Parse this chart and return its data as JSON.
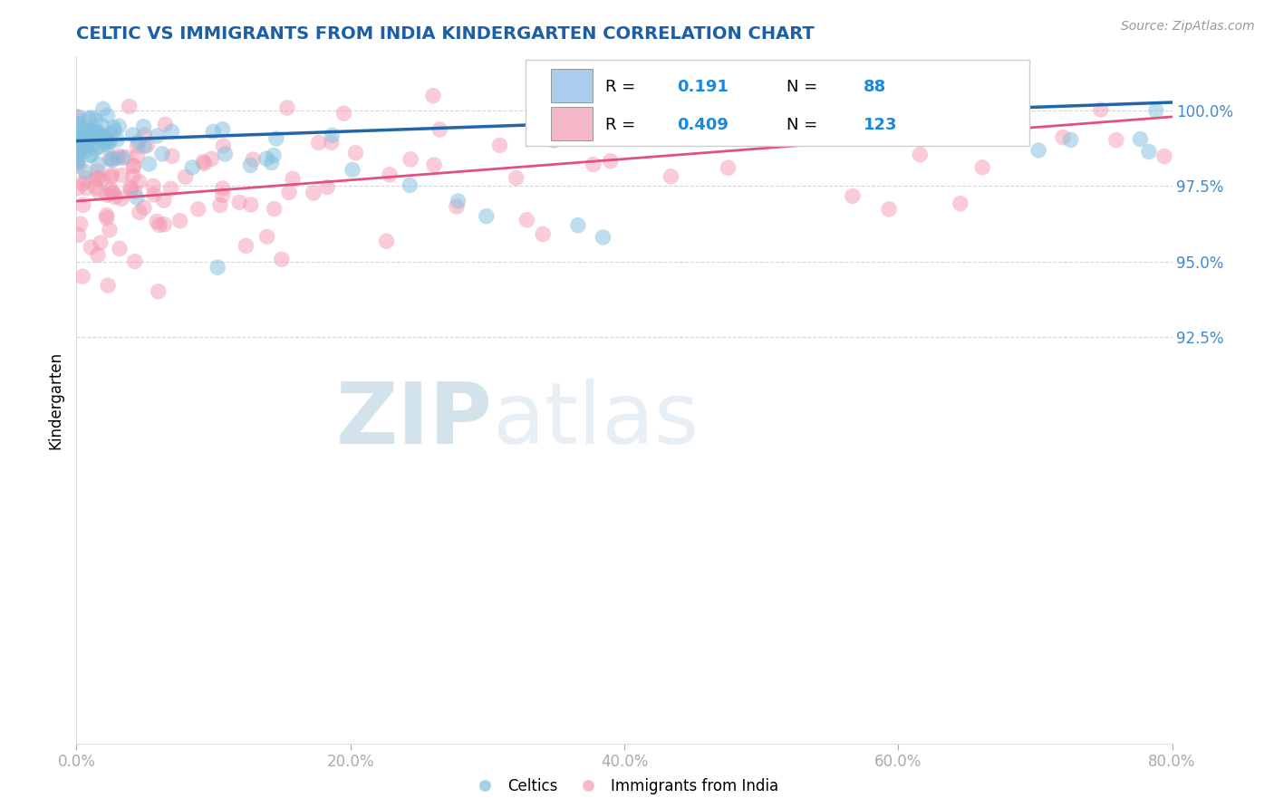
{
  "title": "CELTIC VS IMMIGRANTS FROM INDIA KINDERGARTEN CORRELATION CHART",
  "source_text": "Source: ZipAtlas.com",
  "ylabel": "Kindergarten",
  "x_min": 0.0,
  "x_max": 80.0,
  "y_min": 79.0,
  "y_max": 101.8,
  "yticks": [
    92.5,
    95.0,
    97.5,
    100.0
  ],
  "xticks": [
    0.0,
    20.0,
    40.0,
    60.0,
    80.0
  ],
  "celtics_R": 0.191,
  "celtics_N": 88,
  "india_R": 0.409,
  "india_N": 123,
  "celtics_color": "#7fbfdf",
  "india_color": "#f49ab0",
  "celtics_line_color": "#2166ac",
  "india_line_color": "#e05080",
  "watermark_zip_color": "#b8d0e8",
  "watermark_atlas_color": "#c8d8e8",
  "legend_label_celtics": "Celtics",
  "legend_label_india": "Immigrants from India",
  "title_color": "#1a5fa8",
  "tick_color": "#4488cc",
  "grid_color": "#cccccc"
}
